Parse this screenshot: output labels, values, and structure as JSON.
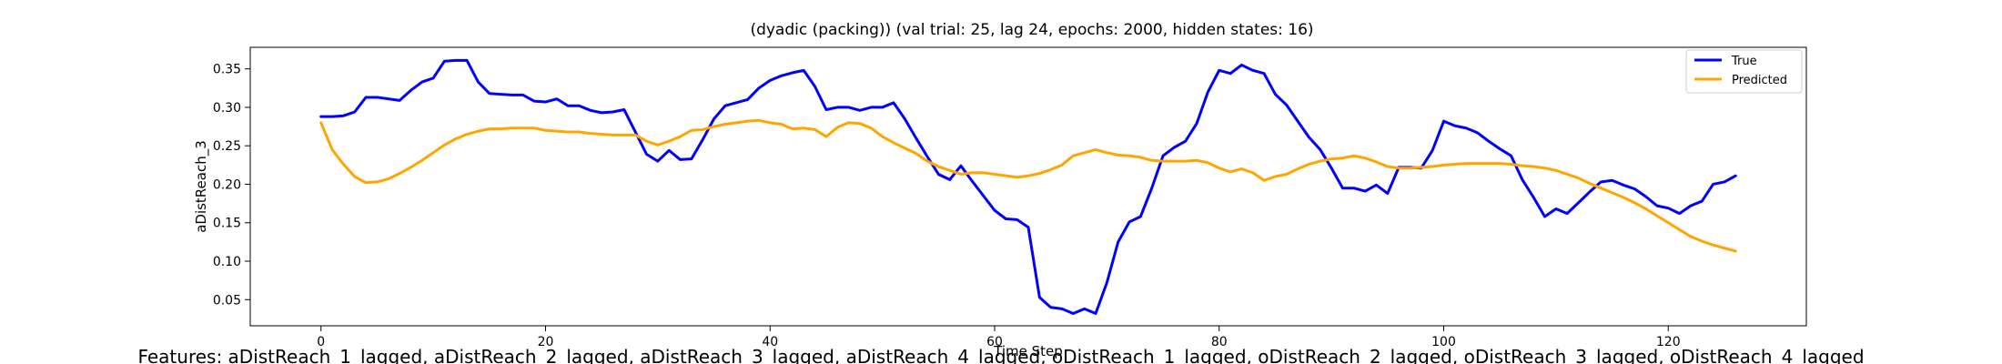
{
  "chart_data": {
    "type": "line",
    "title": "(dyadic (packing)) (val trial: 25, lag 24, epochs: 2000, hidden states: 16)",
    "xlabel": "Time Step",
    "ylabel": "aDistReach_3",
    "xlim": [
      -6.3,
      132.3
    ],
    "ylim": [
      0.016,
      0.378
    ],
    "xticks": [
      0,
      20,
      40,
      60,
      80,
      100,
      120
    ],
    "yticks": [
      0.05,
      0.1,
      0.15,
      0.2,
      0.25,
      0.3,
      0.35
    ],
    "ytick_labels": [
      "0.05",
      "0.10",
      "0.15",
      "0.20",
      "0.25",
      "0.30",
      "0.35"
    ],
    "grid": false,
    "legend_position": "top-right",
    "x": [
      0,
      1,
      2,
      3,
      4,
      5,
      6,
      7,
      8,
      9,
      10,
      11,
      12,
      13,
      14,
      15,
      16,
      17,
      18,
      19,
      20,
      21,
      22,
      23,
      24,
      25,
      26,
      27,
      28,
      29,
      30,
      31,
      32,
      33,
      34,
      35,
      36,
      37,
      38,
      39,
      40,
      41,
      42,
      43,
      44,
      45,
      46,
      47,
      48,
      49,
      50,
      51,
      52,
      53,
      54,
      55,
      56,
      57,
      58,
      59,
      60,
      61,
      62,
      63,
      64,
      65,
      66,
      67,
      68,
      69,
      70,
      71,
      72,
      73,
      74,
      75,
      76,
      77,
      78,
      79,
      80,
      81,
      82,
      83,
      84,
      85,
      86,
      87,
      88,
      89,
      90,
      91,
      92,
      93,
      94,
      95,
      96,
      97,
      98,
      99,
      100,
      101,
      102,
      103,
      104,
      105,
      106,
      107,
      108,
      109,
      110,
      111,
      112,
      113,
      114,
      115,
      116,
      117,
      118,
      119,
      120,
      121,
      122,
      123,
      124,
      125,
      126
    ],
    "series": [
      {
        "name": "True",
        "color": "#0000ff",
        "values": [
          0.288,
          0.288,
          0.289,
          0.294,
          0.313,
          0.313,
          0.311,
          0.309,
          0.322,
          0.333,
          0.338,
          0.36,
          0.361,
          0.361,
          0.333,
          0.318,
          0.317,
          0.316,
          0.316,
          0.308,
          0.307,
          0.311,
          0.302,
          0.302,
          0.296,
          0.293,
          0.294,
          0.297,
          0.268,
          0.239,
          0.23,
          0.244,
          0.232,
          0.233,
          0.258,
          0.285,
          0.302,
          0.306,
          0.31,
          0.325,
          0.335,
          0.341,
          0.345,
          0.348,
          0.327,
          0.297,
          0.3,
          0.3,
          0.296,
          0.3,
          0.3,
          0.306,
          0.285,
          0.26,
          0.236,
          0.213,
          0.206,
          0.224,
          0.204,
          0.185,
          0.166,
          0.155,
          0.154,
          0.144,
          0.053,
          0.04,
          0.038,
          0.032,
          0.038,
          0.032,
          0.072,
          0.125,
          0.151,
          0.158,
          0.195,
          0.237,
          0.248,
          0.256,
          0.279,
          0.32,
          0.348,
          0.344,
          0.355,
          0.348,
          0.344,
          0.317,
          0.303,
          0.282,
          0.261,
          0.245,
          0.221,
          0.195,
          0.195,
          0.191,
          0.199,
          0.188,
          0.222,
          0.222,
          0.221,
          0.244,
          0.282,
          0.276,
          0.273,
          0.267,
          0.256,
          0.246,
          0.237,
          0.206,
          0.183,
          0.158,
          0.168,
          0.162,
          0.176,
          0.19,
          0.203,
          0.205,
          0.199,
          0.194,
          0.184,
          0.172,
          0.169,
          0.162,
          0.172,
          0.178,
          0.2,
          0.203,
          0.211
        ]
      },
      {
        "name": "Predicted",
        "color": "#ffa500",
        "values": [
          0.28,
          0.245,
          0.226,
          0.21,
          0.202,
          0.203,
          0.207,
          0.214,
          0.222,
          0.231,
          0.241,
          0.251,
          0.259,
          0.265,
          0.269,
          0.272,
          0.272,
          0.273,
          0.273,
          0.273,
          0.27,
          0.269,
          0.268,
          0.268,
          0.266,
          0.265,
          0.264,
          0.264,
          0.264,
          0.256,
          0.251,
          0.256,
          0.262,
          0.27,
          0.271,
          0.275,
          0.278,
          0.28,
          0.282,
          0.283,
          0.28,
          0.278,
          0.272,
          0.273,
          0.271,
          0.262,
          0.274,
          0.28,
          0.279,
          0.273,
          0.262,
          0.254,
          0.247,
          0.24,
          0.23,
          0.223,
          0.218,
          0.213,
          0.215,
          0.215,
          0.213,
          0.211,
          0.209,
          0.211,
          0.214,
          0.219,
          0.225,
          0.237,
          0.241,
          0.245,
          0.241,
          0.238,
          0.237,
          0.235,
          0.231,
          0.23,
          0.23,
          0.23,
          0.231,
          0.228,
          0.221,
          0.216,
          0.22,
          0.215,
          0.205,
          0.21,
          0.213,
          0.22,
          0.226,
          0.23,
          0.233,
          0.234,
          0.237,
          0.234,
          0.229,
          0.223,
          0.221,
          0.221,
          0.222,
          0.223,
          0.225,
          0.226,
          0.227,
          0.227,
          0.227,
          0.227,
          0.226,
          0.224,
          0.223,
          0.221,
          0.218,
          0.213,
          0.208,
          0.201,
          0.195,
          0.189,
          0.183,
          0.176,
          0.168,
          0.159,
          0.15,
          0.141,
          0.132,
          0.126,
          0.121,
          0.117,
          0.113
        ]
      }
    ]
  },
  "footer": {
    "features_text": "Features: aDistReach_1_lagged, aDistReach_2_lagged, aDistReach_3_lagged, aDistReach_4_lagged, oDistReach_1_lagged, oDistReach_2_lagged, oDistReach_3_lagged, oDistReach_4_lagged"
  }
}
